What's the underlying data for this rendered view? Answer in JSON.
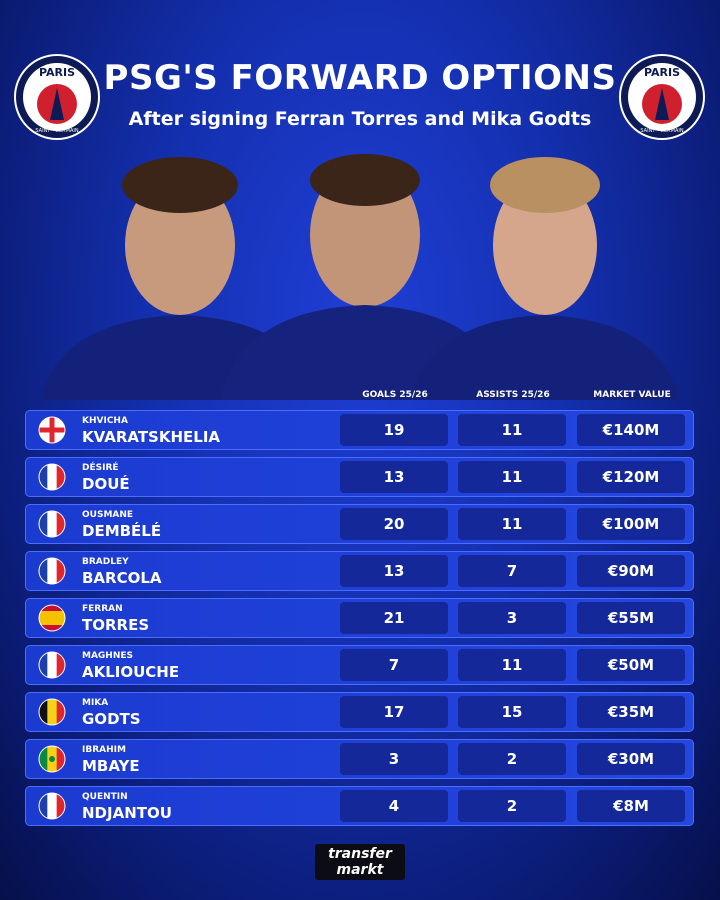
{
  "header": {
    "title": "PSG'S FORWARD OPTIONS",
    "subtitle": "After signing Ferran Torres and Mika Godts"
  },
  "badge": {
    "top": "PARIS",
    "bottom": "SAINT · GERMAIN"
  },
  "table": {
    "columns": [
      "GOALS 25/26",
      "ASSISTS 25/26",
      "MARKET VALUE"
    ],
    "rows": [
      [
        "KHVICHA",
        "KVARATSKHELIA",
        19,
        11,
        "€140M"
      ],
      [
        "DÉSIRÉ",
        "DOUÉ",
        13,
        11,
        "€120M"
      ],
      [
        "OUSMANE",
        "DEMBÉLÉ",
        20,
        11,
        "€100M"
      ],
      [
        "BRADLEY",
        "BARCOLA",
        13,
        7,
        "€90M"
      ],
      [
        "FERRAN",
        "TORRES",
        21,
        3,
        "€55M"
      ],
      [
        "MAGHNES",
        "AKLIOUCHE",
        7,
        11,
        "€50M"
      ],
      [
        "MIKA",
        "GODTS",
        17,
        15,
        "€35M"
      ],
      [
        "IBRAHIM",
        "MBAYE",
        3,
        2,
        "€30M"
      ],
      [
        "QUENTIN",
        "NDJANTOU",
        4,
        2,
        "€8M"
      ]
    ]
  },
  "footer": {
    "logo_top": "transfer",
    "logo_bottom": "markt"
  }
}
